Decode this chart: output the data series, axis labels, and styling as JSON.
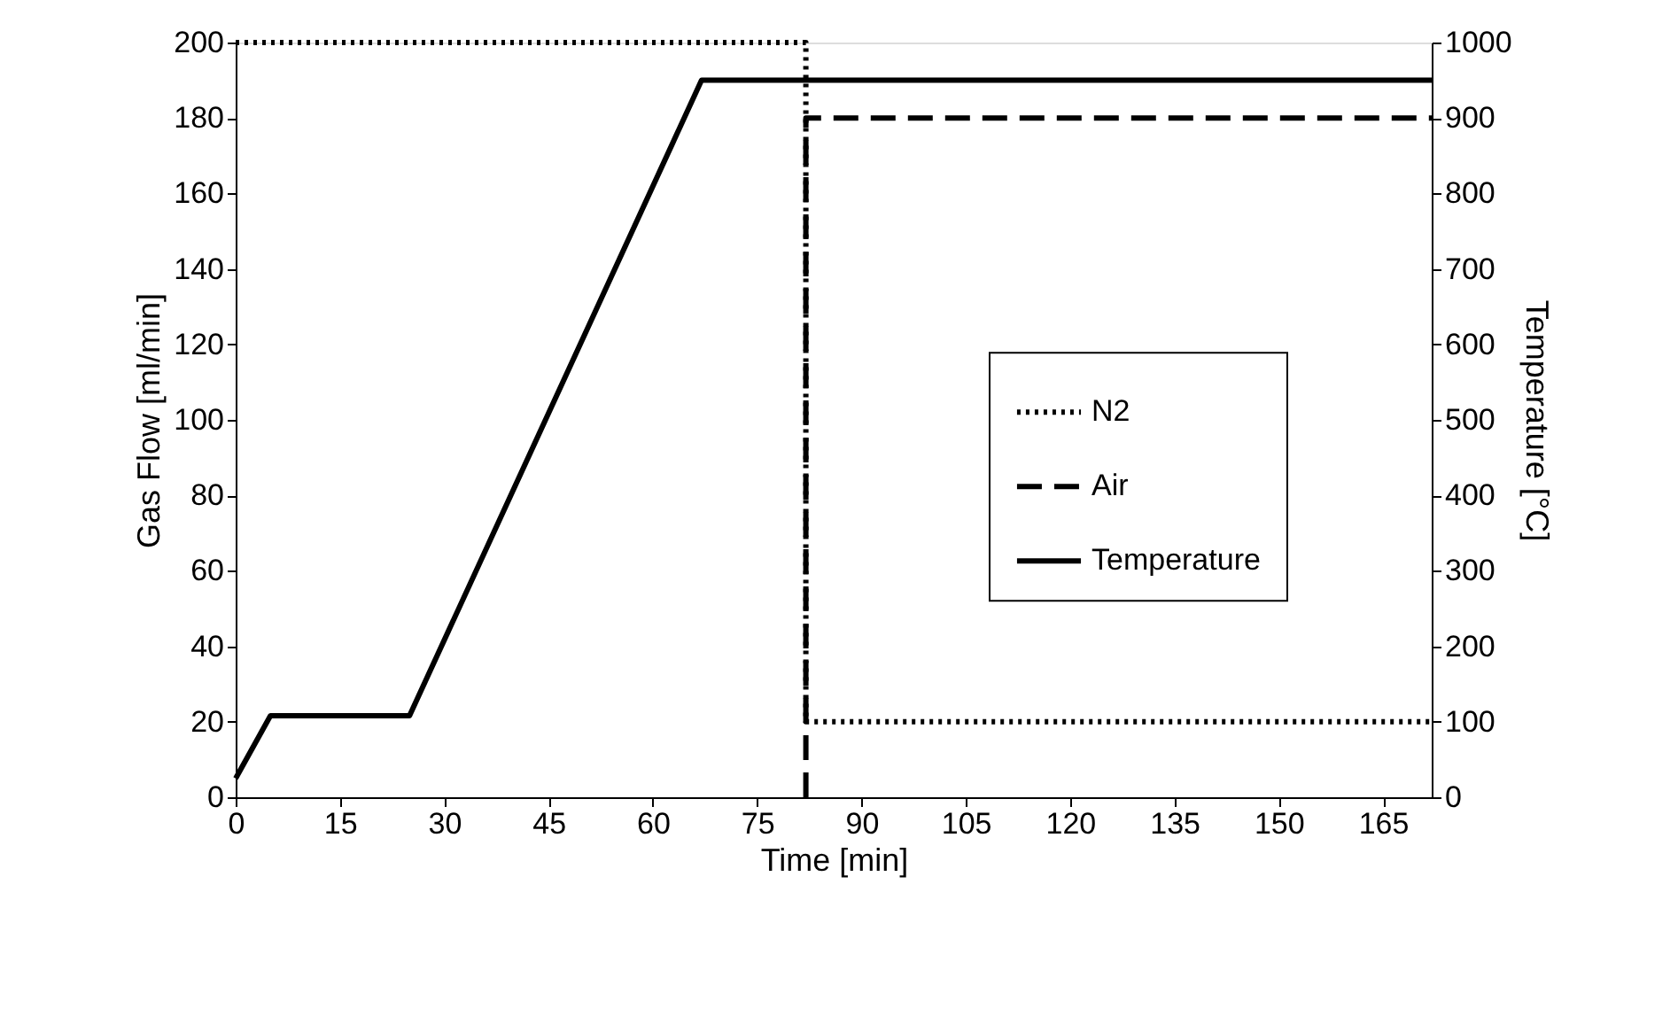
{
  "chart_data": {
    "type": "line",
    "xlabel": "Time [min]",
    "ylabel": "Gas Flow [ml/min]",
    "y2label": "Temperature [°C]",
    "xlim": [
      0,
      172
    ],
    "xticks": [
      0,
      15,
      30,
      45,
      60,
      75,
      90,
      105,
      120,
      135,
      150,
      165
    ],
    "ylim": [
      0,
      200
    ],
    "yticks": [
      0,
      20,
      40,
      60,
      80,
      100,
      120,
      140,
      160,
      180,
      200
    ],
    "y2lim": [
      0,
      1000
    ],
    "y2ticks": [
      0,
      100,
      200,
      300,
      400,
      500,
      600,
      700,
      800,
      900,
      1000
    ],
    "grid": false,
    "legend": "right",
    "marker": "none",
    "series": [
      {
        "name": "N2",
        "color": "#000000",
        "line_style": "dotted",
        "x": [
          0,
          82,
          82,
          172
        ],
        "values": [
          200,
          200,
          20,
          20
        ]
      },
      {
        "name": "Air",
        "color": "#000000",
        "line_style": "dashed",
        "x": [
          82,
          82,
          172
        ],
        "values": [
          0,
          180,
          180
        ]
      },
      {
        "name": "Temperature",
        "color": "#000000",
        "line_style": "solid",
        "axis": "y2",
        "x": [
          0,
          5,
          25,
          67,
          172
        ],
        "values": [
          25,
          108,
          108,
          950,
          950
        ]
      }
    ]
  }
}
